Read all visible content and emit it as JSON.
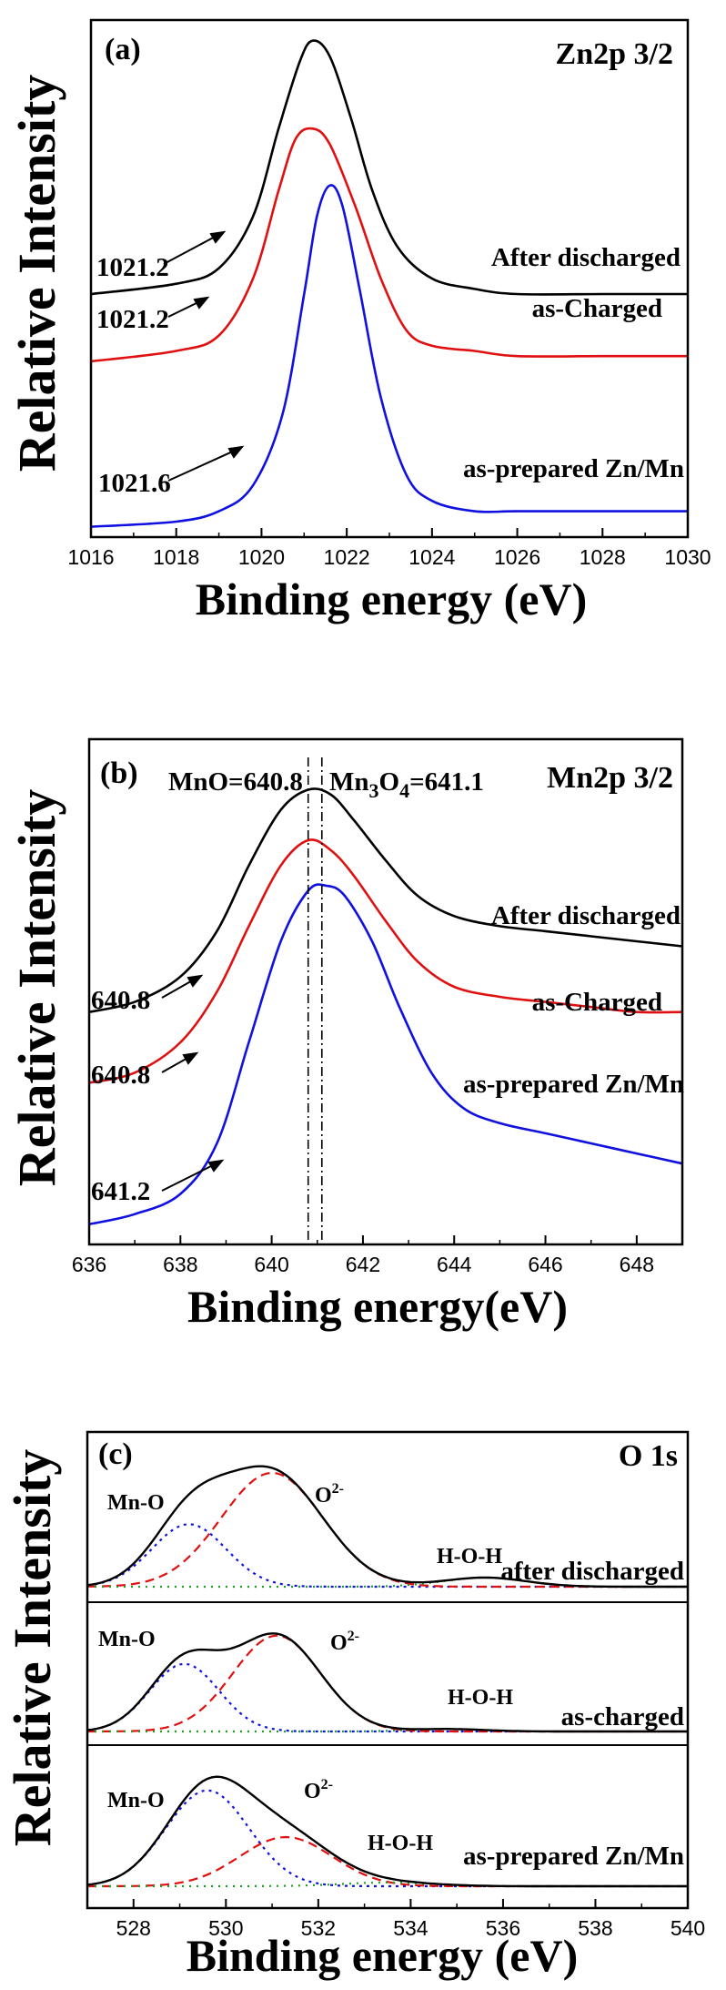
{
  "chart_data": [
    {
      "type": "line",
      "panel": "(a)",
      "core_label": "Zn2p 3/2",
      "xlabel": "Binding energy  (eV)",
      "ylabel": "Relative Intensity",
      "xlim": [
        1016,
        1030
      ],
      "xticks": [
        "1016",
        "1018",
        "1020",
        "1022",
        "1024",
        "1026",
        "1028",
        "1030"
      ],
      "ylim": [
        0,
        1
      ],
      "series": [
        {
          "name": "After discharged",
          "color": "#000000",
          "x": [
            1016,
            1018,
            1019,
            1019.8,
            1020.4,
            1020.9,
            1021.2,
            1021.6,
            1022.1,
            1022.6,
            1023.2,
            1024,
            1025,
            1026,
            1028,
            1030
          ],
          "y": [
            0.47,
            0.49,
            0.52,
            0.62,
            0.79,
            0.92,
            0.96,
            0.93,
            0.81,
            0.67,
            0.56,
            0.5,
            0.48,
            0.47,
            0.47,
            0.47
          ]
        },
        {
          "name": "as-Charged",
          "color": "#e01010",
          "x": [
            1016,
            1018,
            1019,
            1019.8,
            1020.4,
            1020.8,
            1021.2,
            1021.6,
            1022.2,
            1022.8,
            1023.4,
            1024,
            1025,
            1026,
            1028,
            1030
          ],
          "y": [
            0.34,
            0.36,
            0.39,
            0.5,
            0.67,
            0.77,
            0.79,
            0.76,
            0.64,
            0.5,
            0.4,
            0.37,
            0.36,
            0.35,
            0.35,
            0.35
          ]
        },
        {
          "name": "as-prepared Zn/Mn",
          "color": "#1010e0",
          "x": [
            1016,
            1018,
            1019,
            1019.8,
            1020.5,
            1021,
            1021.3,
            1021.6,
            1021.9,
            1022.3,
            1022.8,
            1023.4,
            1024,
            1025,
            1026,
            1028,
            1030
          ],
          "y": [
            0.02,
            0.03,
            0.05,
            0.1,
            0.24,
            0.47,
            0.62,
            0.68,
            0.64,
            0.48,
            0.27,
            0.12,
            0.07,
            0.05,
            0.05,
            0.05,
            0.05
          ]
        }
      ],
      "annotations": [
        "1021.2",
        "1021.2",
        "1021.6"
      ]
    },
    {
      "type": "line",
      "panel": "(b)",
      "core_label": "Mn2p 3/2",
      "xlabel": "Binding energy(eV)",
      "ylabel": "Relative Intensity",
      "xlim": [
        636,
        649
      ],
      "xticks": [
        "636",
        "638",
        "640",
        "642",
        "644",
        "646",
        "648"
      ],
      "ylim": [
        0,
        1
      ],
      "reference_lines": [
        {
          "x": 640.8,
          "label": "MnO=640.8"
        },
        {
          "x": 641.1,
          "label_main": "Mn",
          "label_sub": "3",
          "label_mid": "O",
          "label_sub2": "4",
          "label_end": "=641.1"
        }
      ],
      "series": [
        {
          "name": "After discharged",
          "color": "#000000",
          "x": [
            636,
            637,
            638,
            638.8,
            639.5,
            640.2,
            640.8,
            641.3,
            641.8,
            642.5,
            643.2,
            644,
            645,
            646,
            647,
            648,
            649
          ],
          "y": [
            0.46,
            0.48,
            0.53,
            0.62,
            0.75,
            0.86,
            0.9,
            0.89,
            0.84,
            0.76,
            0.69,
            0.65,
            0.63,
            0.62,
            0.61,
            0.6,
            0.59
          ]
        },
        {
          "name": "as-Charged",
          "color": "#e01010",
          "x": [
            636,
            637,
            638,
            638.8,
            639.5,
            640.2,
            640.8,
            641.3,
            641.8,
            642.5,
            643.2,
            644,
            645,
            646,
            647,
            648,
            649
          ],
          "y": [
            0.32,
            0.34,
            0.4,
            0.5,
            0.63,
            0.75,
            0.8,
            0.78,
            0.73,
            0.64,
            0.56,
            0.51,
            0.49,
            0.48,
            0.47,
            0.46,
            0.46
          ]
        },
        {
          "name": "as-prepared Zn/Mn",
          "color": "#1010e0",
          "x": [
            636,
            637,
            638,
            638.8,
            639.5,
            640.2,
            640.8,
            641.2,
            641.6,
            642.2,
            642.8,
            643.5,
            644.2,
            645,
            646,
            647,
            648,
            649
          ],
          "y": [
            0.04,
            0.06,
            0.1,
            0.2,
            0.4,
            0.6,
            0.7,
            0.71,
            0.69,
            0.6,
            0.47,
            0.34,
            0.27,
            0.24,
            0.22,
            0.2,
            0.18,
            0.16
          ]
        }
      ],
      "annotations": [
        "640.8",
        "640.8",
        "641.2"
      ]
    },
    {
      "type": "line",
      "panel": "(c)",
      "core_label": "O 1s",
      "xlabel": "Binding energy (eV)",
      "ylabel": "Relative Intensity",
      "xlim": [
        527,
        540
      ],
      "xticks": [
        "528",
        "530",
        "532",
        "534",
        "536",
        "538",
        "540"
      ],
      "ylim": [
        0,
        1
      ],
      "subpanels": [
        {
          "name": "after discharged",
          "peaks": {
            "Mn-O": [
              529.2,
              0.55,
              0.8
            ],
            "O2-": [
              531.0,
              1.0,
              1.1
            ],
            "H-O-H": [
              535.6,
              0.08,
              0.9
            ]
          },
          "labels": {
            "mno": "Mn-O",
            "o2": "O",
            "o2_sup": "2-",
            "hoh": "H-O-H"
          }
        },
        {
          "name": "as-charged",
          "peaks": {
            "Mn-O": [
              529.1,
              0.55,
              0.75
            ],
            "O2-": [
              531.1,
              0.78,
              0.95
            ],
            "H-O-H": [
              534.8,
              0.02,
              0.8
            ]
          },
          "labels": {
            "mno": "Mn-O",
            "o2": "O",
            "o2_sup": "2-",
            "hoh": "H-O-H"
          }
        },
        {
          "name": "as-prepared Zn/Mn",
          "peaks": {
            "Mn-O": [
              529.6,
              0.78,
              0.9
            ],
            "O2-": [
              531.3,
              0.4,
              1.0
            ],
            "H-O-H": [
              533.5,
              0.03,
              1.0
            ]
          },
          "labels": {
            "mno": "Mn-O",
            "o2": "O",
            "o2_sup": "2-",
            "hoh": "H-O-H"
          }
        }
      ],
      "fit_colors": {
        "envelope": "#000000",
        "Mn-O": "#1010e0",
        "O2-": "#e01010",
        "H-O-H": "#20a020"
      }
    }
  ]
}
